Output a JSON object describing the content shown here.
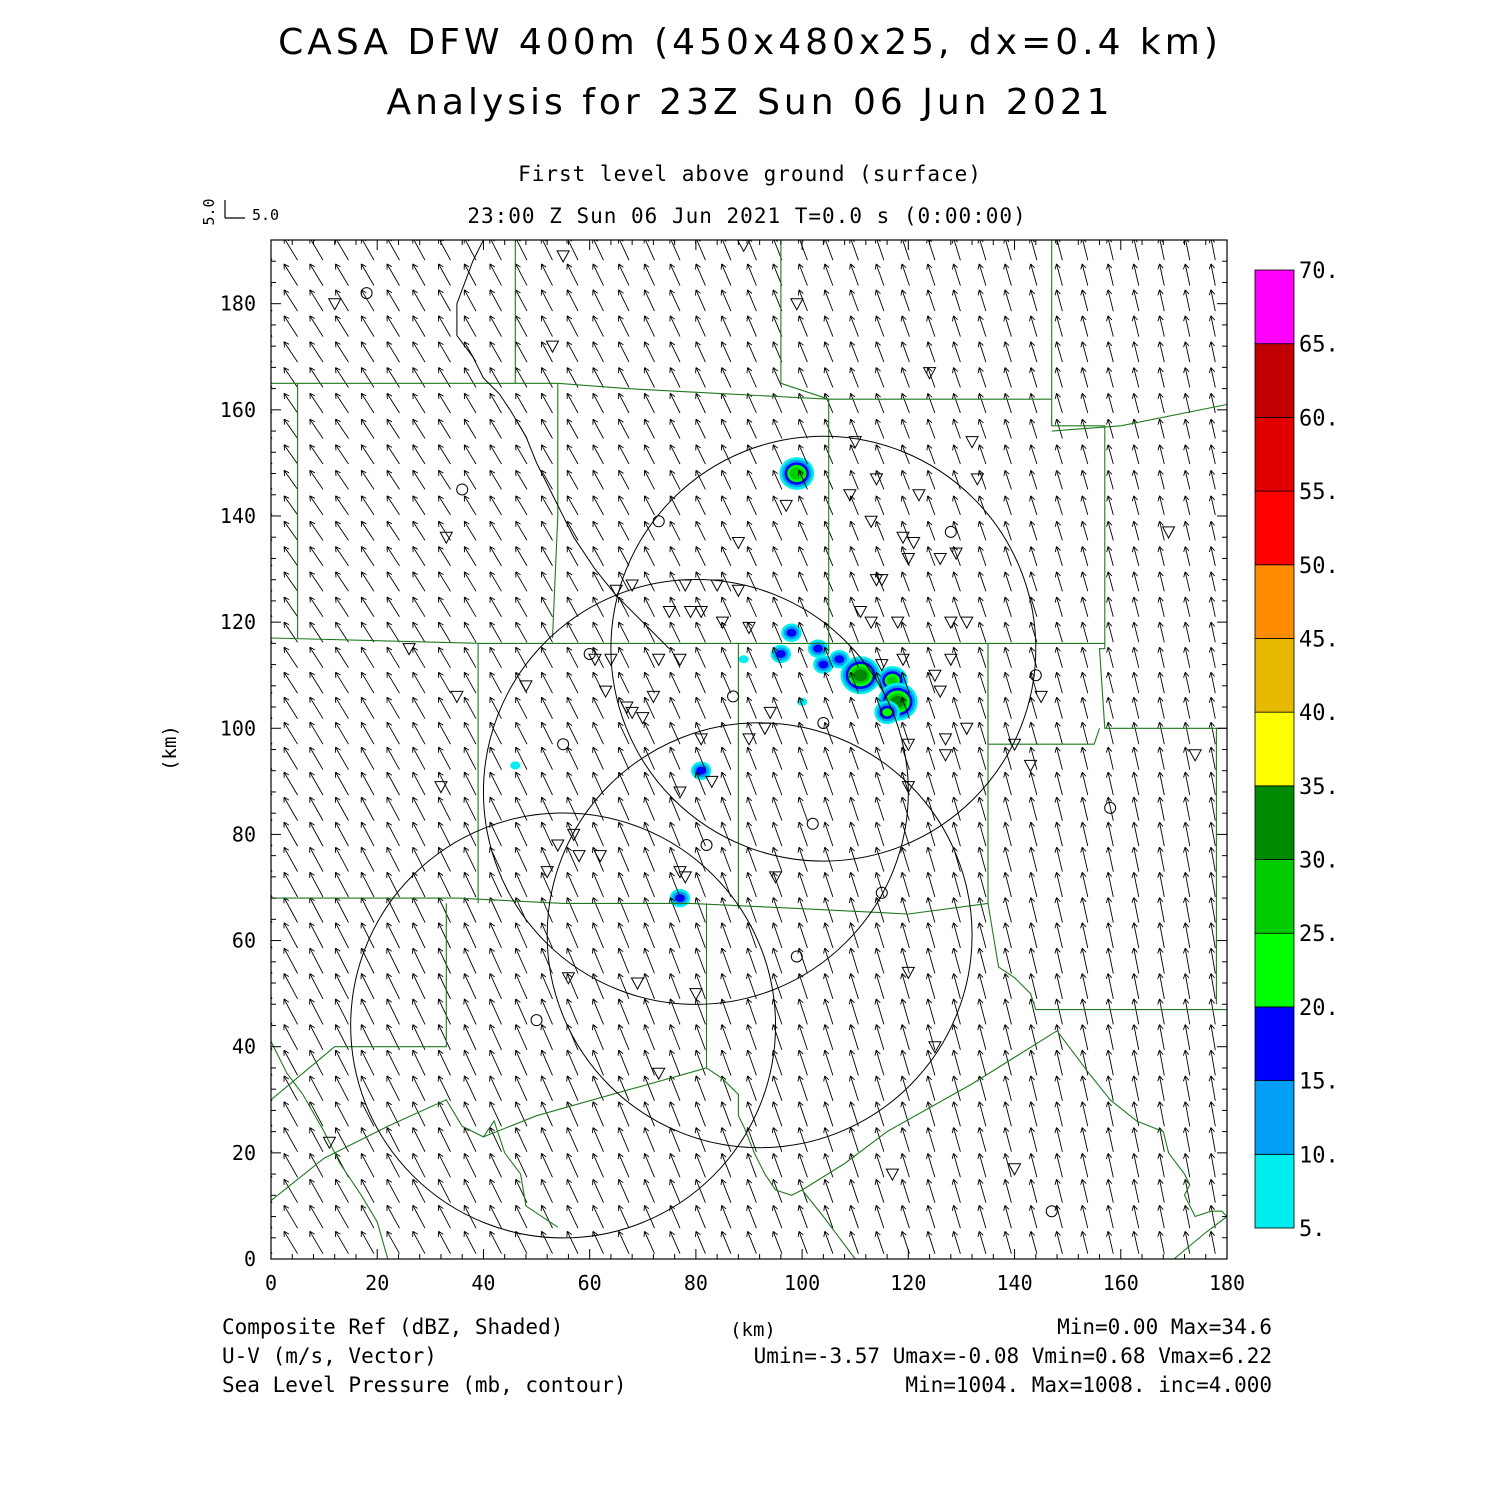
{
  "title_line1": "CASA DFW 400m (450x480x25, dx=0.4 km)",
  "title_line2": "Analysis for 23Z Sun 06 Jun 2021",
  "subtitle_level": "First level above ground (surface)",
  "subtitle_time": "23:00 Z Sun 06 Jun 2021   T=0.0 s (0:00:00)",
  "vector_key": {
    "u_label": "5.0",
    "v_label": "5.0"
  },
  "footer": {
    "left_1": "Composite Ref (dBZ, Shaded)",
    "left_2": "U-V (m/s, Vector)",
    "left_3": "Sea Level Pressure (mb, contour)",
    "center_unit": "(km)",
    "right_1": "Min=0.00 Max=34.6",
    "right_2": "Umin=-3.57 Umax=-0.08 Vmin=0.68 Vmax=6.22",
    "right_3": "Min=1004. Max=1008. inc=4.000"
  },
  "map_data": {
    "xlabel": "(km)",
    "ylabel": "(km)",
    "xlim": [
      0,
      180
    ],
    "ylim": [
      0,
      192
    ],
    "x_ticks": [
      0,
      20,
      40,
      60,
      80,
      100,
      120,
      140,
      160,
      180
    ],
    "y_ticks": [
      0,
      20,
      40,
      60,
      80,
      100,
      120,
      140,
      160,
      180
    ],
    "colorbar": {
      "labels": [
        "5.",
        "10.",
        "15.",
        "20.",
        "25.",
        "30.",
        "35.",
        "40.",
        "45.",
        "50.",
        "55.",
        "60.",
        "65.",
        "70."
      ],
      "colors": [
        "#00eeee",
        "#009ff5",
        "#0000ff",
        "#00ff00",
        "#00cc00",
        "#008a00",
        "#ffff00",
        "#e6b800",
        "#ff8c00",
        "#ff0000",
        "#e00000",
        "#c00000",
        "#ff00ff"
      ]
    },
    "wind": {
      "u_start": -2.6,
      "u_end": -0.8,
      "v": 4.2,
      "spacing_km": 4.8
    },
    "radar_rings": [
      {
        "cx": 104,
        "cy": 115,
        "r": 40
      },
      {
        "cx": 80,
        "cy": 88,
        "r": 40
      },
      {
        "cx": 92,
        "cy": 61,
        "r": 40
      },
      {
        "cx": 55,
        "cy": 44,
        "r": 40
      }
    ],
    "reflectivity_cells": [
      {
        "x": 99,
        "y": 148,
        "dbz": 28
      },
      {
        "x": 103,
        "y": 115,
        "dbz": 18
      },
      {
        "x": 98,
        "y": 118,
        "dbz": 17
      },
      {
        "x": 96,
        "y": 114,
        "dbz": 15
      },
      {
        "x": 104,
        "y": 112,
        "dbz": 15
      },
      {
        "x": 107,
        "y": 113,
        "dbz": 18
      },
      {
        "x": 111,
        "y": 110,
        "dbz": 30
      },
      {
        "x": 117,
        "y": 109,
        "dbz": 25
      },
      {
        "x": 118,
        "y": 105,
        "dbz": 34.6
      },
      {
        "x": 116,
        "y": 103,
        "dbz": 20
      },
      {
        "x": 89,
        "y": 113,
        "dbz": 8
      },
      {
        "x": 100,
        "y": 105,
        "dbz": 8
      },
      {
        "x": 81,
        "y": 92,
        "dbz": 15
      },
      {
        "x": 77,
        "y": 68,
        "dbz": 18
      },
      {
        "x": 46,
        "y": 93,
        "dbz": 6
      }
    ],
    "stations_triangle": [
      [
        55,
        189
      ],
      [
        89,
        191
      ],
      [
        12,
        180
      ],
      [
        99,
        180
      ],
      [
        53,
        172
      ],
      [
        124,
        167
      ],
      [
        110,
        154
      ],
      [
        132,
        154
      ],
      [
        114,
        147
      ],
      [
        133,
        147
      ],
      [
        97,
        142
      ],
      [
        109,
        144
      ],
      [
        122,
        144
      ],
      [
        113,
        139
      ],
      [
        88,
        135
      ],
      [
        33,
        136
      ],
      [
        119,
        136
      ],
      [
        121,
        135
      ],
      [
        120,
        132
      ],
      [
        126,
        132
      ],
      [
        129,
        133
      ],
      [
        169,
        137
      ],
      [
        65,
        126
      ],
      [
        68,
        127
      ],
      [
        78,
        127
      ],
      [
        84,
        127
      ],
      [
        88,
        126
      ],
      [
        114,
        128
      ],
      [
        115,
        128
      ],
      [
        75,
        122
      ],
      [
        79,
        122
      ],
      [
        81,
        122
      ],
      [
        85,
        120
      ],
      [
        90,
        119
      ],
      [
        111,
        122
      ],
      [
        113,
        120
      ],
      [
        118,
        120
      ],
      [
        128,
        120
      ],
      [
        131,
        120
      ],
      [
        26,
        115
      ],
      [
        61,
        113
      ],
      [
        64,
        113
      ],
      [
        73,
        113
      ],
      [
        77,
        113
      ],
      [
        119,
        113
      ],
      [
        115,
        112
      ],
      [
        125,
        110
      ],
      [
        128,
        113
      ],
      [
        35,
        106
      ],
      [
        48,
        108
      ],
      [
        63,
        107
      ],
      [
        67,
        104
      ],
      [
        68,
        103
      ],
      [
        72,
        106
      ],
      [
        126,
        107
      ],
      [
        145,
        106
      ],
      [
        70,
        102
      ],
      [
        90,
        98
      ],
      [
        93,
        100
      ],
      [
        94,
        103
      ],
      [
        120,
        97
      ],
      [
        127,
        98
      ],
      [
        131,
        100
      ],
      [
        81,
        98
      ],
      [
        140,
        97
      ],
      [
        127,
        95
      ],
      [
        32,
        89
      ],
      [
        77,
        88
      ],
      [
        83,
        90
      ],
      [
        120,
        89
      ],
      [
        143,
        93
      ],
      [
        174,
        95
      ],
      [
        54,
        78
      ],
      [
        57,
        80
      ],
      [
        62,
        76
      ],
      [
        58,
        76
      ],
      [
        52,
        73
      ],
      [
        77,
        73
      ],
      [
        78,
        72
      ],
      [
        95,
        72
      ],
      [
        56,
        53
      ],
      [
        69,
        52
      ],
      [
        80,
        50
      ],
      [
        120,
        54
      ],
      [
        125,
        40
      ],
      [
        73,
        35
      ],
      [
        11,
        22
      ],
      [
        117,
        16
      ],
      [
        140,
        17
      ]
    ],
    "stations_circle": [
      [
        18,
        182
      ],
      [
        36,
        145
      ],
      [
        73,
        139
      ],
      [
        128,
        137
      ],
      [
        60,
        114
      ],
      [
        55,
        97
      ],
      [
        87,
        106
      ],
      [
        104,
        101
      ],
      [
        144,
        110
      ],
      [
        102,
        82
      ],
      [
        82,
        78
      ],
      [
        115,
        69
      ],
      [
        158,
        85
      ],
      [
        99,
        57
      ],
      [
        50,
        45
      ],
      [
        147,
        9
      ]
    ],
    "county_lines": [
      [
        [
          0,
          165
        ],
        [
          40,
          165
        ],
        [
          43,
          165
        ],
        [
          54,
          165
        ],
        [
          67,
          164
        ],
        [
          86,
          163
        ],
        [
          105,
          162
        ],
        [
          122,
          162
        ],
        [
          147,
          162
        ],
        [
          147,
          157
        ],
        [
          157,
          157
        ],
        [
          157,
          136
        ],
        [
          157,
          115
        ],
        [
          156,
          115
        ],
        [
          157,
          100
        ],
        [
          180,
          100
        ]
      ],
      [
        [
          5,
          165
        ],
        [
          5,
          117
        ]
      ],
      [
        [
          46,
          192
        ],
        [
          46,
          165
        ]
      ],
      [
        [
          54,
          165
        ],
        [
          54,
          140
        ],
        [
          53,
          117
        ]
      ],
      [
        [
          96,
          192
        ],
        [
          96,
          165
        ],
        [
          105,
          162
        ]
      ],
      [
        [
          147,
          192
        ],
        [
          147,
          162
        ]
      ],
      [
        [
          147,
          156
        ],
        [
          160,
          157
        ],
        [
          180,
          161
        ]
      ],
      [
        [
          0,
          117
        ],
        [
          40,
          116
        ],
        [
          85,
          116
        ],
        [
          100,
          116
        ],
        [
          114,
          116
        ],
        [
          135,
          116
        ],
        [
          157,
          116
        ]
      ],
      [
        [
          39,
          116
        ],
        [
          39,
          67
        ]
      ],
      [
        [
          105,
          162
        ],
        [
          105,
          116
        ],
        [
          105,
          114
        ]
      ],
      [
        [
          88,
          116
        ],
        [
          88,
          66
        ]
      ],
      [
        [
          135,
          116
        ],
        [
          135,
          97
        ],
        [
          155,
          97
        ],
        [
          156,
          100
        ]
      ],
      [
        [
          135,
          116
        ],
        [
          135,
          67
        ]
      ],
      [
        [
          0,
          68
        ],
        [
          35,
          68
        ],
        [
          55,
          67
        ],
        [
          79,
          67
        ],
        [
          100,
          66
        ],
        [
          120,
          65
        ],
        [
          135,
          67
        ]
      ],
      [
        [
          33,
          67
        ],
        [
          33,
          40
        ],
        [
          16,
          40
        ],
        [
          12,
          40
        ],
        [
          0,
          30
        ]
      ],
      [
        [
          0,
          11
        ],
        [
          10,
          19
        ],
        [
          22,
          25
        ],
        [
          33,
          30
        ],
        [
          36,
          25
        ],
        [
          40,
          23
        ],
        [
          42,
          26
        ],
        [
          44,
          20
        ],
        [
          47,
          16
        ],
        [
          48,
          10
        ],
        [
          54,
          6
        ]
      ],
      [
        [
          82,
          67
        ],
        [
          82,
          47
        ],
        [
          82,
          36
        ],
        [
          50,
          27
        ],
        [
          40,
          23
        ]
      ],
      [
        [
          135,
          67
        ],
        [
          137,
          55
        ],
        [
          140,
          53
        ],
        [
          143,
          50
        ],
        [
          144,
          47
        ],
        [
          180,
          47
        ]
      ],
      [
        [
          178,
          100
        ],
        [
          178,
          48
        ]
      ],
      [
        [
          100,
          13
        ],
        [
          108,
          18
        ],
        [
          116,
          24
        ],
        [
          132,
          33
        ],
        [
          148,
          43
        ],
        [
          154,
          35
        ],
        [
          158,
          30
        ],
        [
          163,
          26
        ],
        [
          168,
          24
        ],
        [
          169,
          20
        ],
        [
          172,
          16
        ],
        [
          173,
          14
        ],
        [
          172,
          12
        ],
        [
          174,
          8
        ],
        [
          177,
          9
        ],
        [
          179,
          9
        ],
        [
          180,
          8
        ]
      ],
      [
        [
          100,
          13
        ],
        [
          98,
          12
        ],
        [
          95,
          13
        ],
        [
          93,
          16
        ],
        [
          91,
          20
        ],
        [
          89,
          25
        ],
        [
          88,
          27
        ],
        [
          88,
          31
        ],
        [
          85,
          34
        ],
        [
          82,
          36
        ]
      ],
      [
        [
          0,
          41
        ],
        [
          3,
          35
        ],
        [
          6,
          31
        ],
        [
          10,
          24
        ],
        [
          13,
          18
        ],
        [
          17,
          12
        ],
        [
          20,
          7
        ],
        [
          22,
          0
        ]
      ],
      [
        [
          100,
          13
        ],
        [
          104,
          8
        ],
        [
          107,
          4
        ],
        [
          110,
          0
        ]
      ],
      [
        [
          170,
          0
        ],
        [
          176,
          5
        ],
        [
          180,
          8
        ]
      ]
    ],
    "boundary_line": [
      [
        40,
        192
      ],
      [
        38,
        188
      ],
      [
        35,
        180
      ],
      [
        35,
        174
      ],
      [
        38,
        170
      ],
      [
        40,
        166
      ],
      [
        43,
        163
      ],
      [
        45,
        160
      ],
      [
        48,
        155
      ],
      [
        50,
        150
      ],
      [
        54,
        142
      ],
      [
        57,
        136
      ],
      [
        61,
        130
      ],
      [
        65,
        125
      ],
      [
        70,
        120
      ],
      [
        75,
        115
      ]
    ]
  }
}
